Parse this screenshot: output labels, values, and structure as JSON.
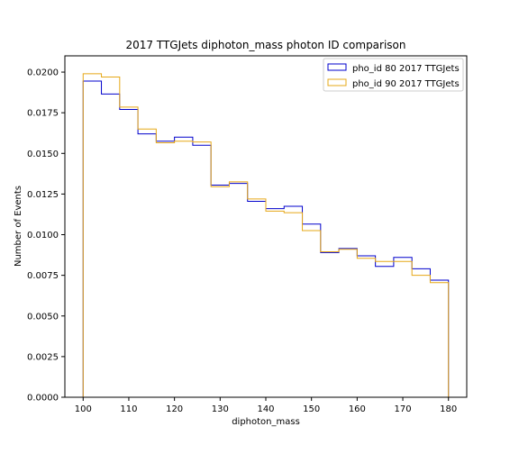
{
  "chart_data": {
    "type": "histogram-step",
    "title": "2017 TTGJets diphoton_mass photon ID comparison",
    "xlabel": "diphoton_mass",
    "ylabel": "Number of Events",
    "xlim": [
      96,
      184
    ],
    "ylim": [
      0,
      0.021
    ],
    "bin_edges": [
      100,
      104,
      108,
      112,
      116,
      120,
      124,
      128,
      132,
      136,
      140,
      144,
      148,
      152,
      156,
      160,
      164,
      168,
      172,
      176,
      180
    ],
    "x_ticks": [
      100,
      110,
      120,
      130,
      140,
      150,
      160,
      170,
      180
    ],
    "x_tick_labels": [
      "100",
      "110",
      "120",
      "130",
      "140",
      "150",
      "160",
      "170",
      "180"
    ],
    "y_ticks": [
      0,
      0.0025,
      0.005,
      0.0075,
      0.01,
      0.0125,
      0.015,
      0.0175,
      0.02
    ],
    "y_tick_labels": [
      "0.0000",
      "0.0025",
      "0.0050",
      "0.0075",
      "0.0100",
      "0.0125",
      "0.0150",
      "0.0175",
      "0.0200"
    ],
    "grid": false,
    "legend_position": "top-right",
    "series": [
      {
        "name": "pho_id 80 2017 TTGJets",
        "color": "#0000cc",
        "values": [
          0.01945,
          0.01865,
          0.0177,
          0.0162,
          0.01575,
          0.016,
          0.0155,
          0.01305,
          0.01315,
          0.01205,
          0.0116,
          0.01175,
          0.01065,
          0.0089,
          0.00915,
          0.0087,
          0.00805,
          0.0086,
          0.0079,
          0.0072
        ]
      },
      {
        "name": "pho_id 90 2017 TTGJets",
        "color": "#e6a817",
        "values": [
          0.0199,
          0.0197,
          0.01785,
          0.0165,
          0.01565,
          0.01575,
          0.0157,
          0.01295,
          0.01325,
          0.0122,
          0.01145,
          0.01135,
          0.01025,
          0.00895,
          0.0091,
          0.00855,
          0.00835,
          0.00835,
          0.0075,
          0.00705
        ]
      }
    ]
  }
}
